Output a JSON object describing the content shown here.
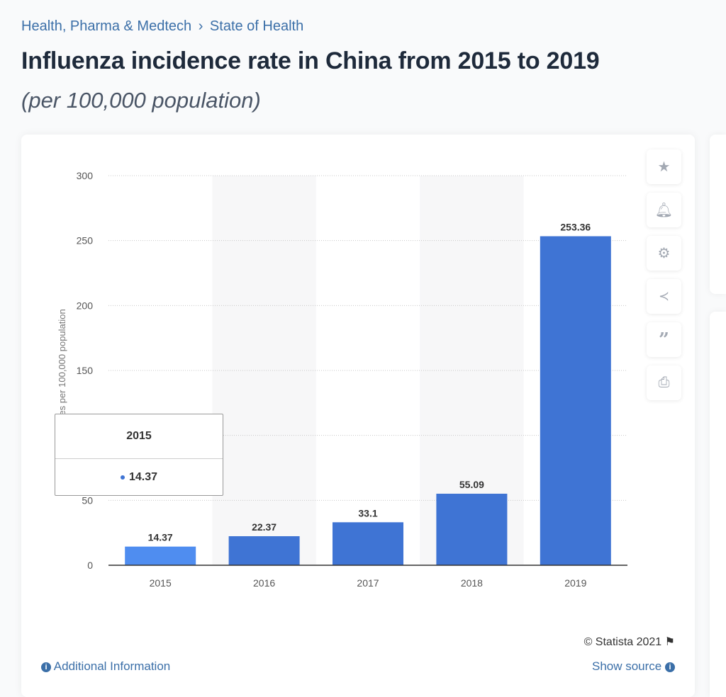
{
  "breadcrumb": {
    "items": [
      "Health, Pharma & Medtech",
      "State of Health"
    ],
    "separator": "›"
  },
  "header": {
    "title": "Influenza incidence rate in China from 2015 to 2019",
    "subtitle": "(per 100,000 population)"
  },
  "toolbar": {
    "icons": [
      "star-icon",
      "bell-icon",
      "gear-icon",
      "share-icon",
      "quote-icon",
      "print-icon"
    ]
  },
  "tooltip": {
    "label": "2015",
    "value": "14.37"
  },
  "footer": {
    "copyright": "© Statista 2021",
    "additional_info": "Additional Information",
    "show_source": "Show source"
  },
  "colors": {
    "bar": "#3f74d4",
    "bar_hover": "#4f8df0",
    "link": "#3b6fa8"
  },
  "chart_data": {
    "type": "bar",
    "title": "Influenza incidence rate in China from 2015 to 2019",
    "categories": [
      "2015",
      "2016",
      "2017",
      "2018",
      "2019"
    ],
    "values": [
      14.37,
      22.37,
      33.1,
      55.09,
      253.36
    ],
    "value_labels": [
      "14.37",
      "22.37",
      "33.1",
      "55.09",
      "253.36"
    ],
    "ylabel": "Cases per 100,000 population",
    "xlabel": "",
    "ylim": [
      0,
      300
    ],
    "yticks": [
      0,
      50,
      100,
      150,
      200,
      250,
      300
    ],
    "grid": true,
    "highlighted": "2015"
  }
}
